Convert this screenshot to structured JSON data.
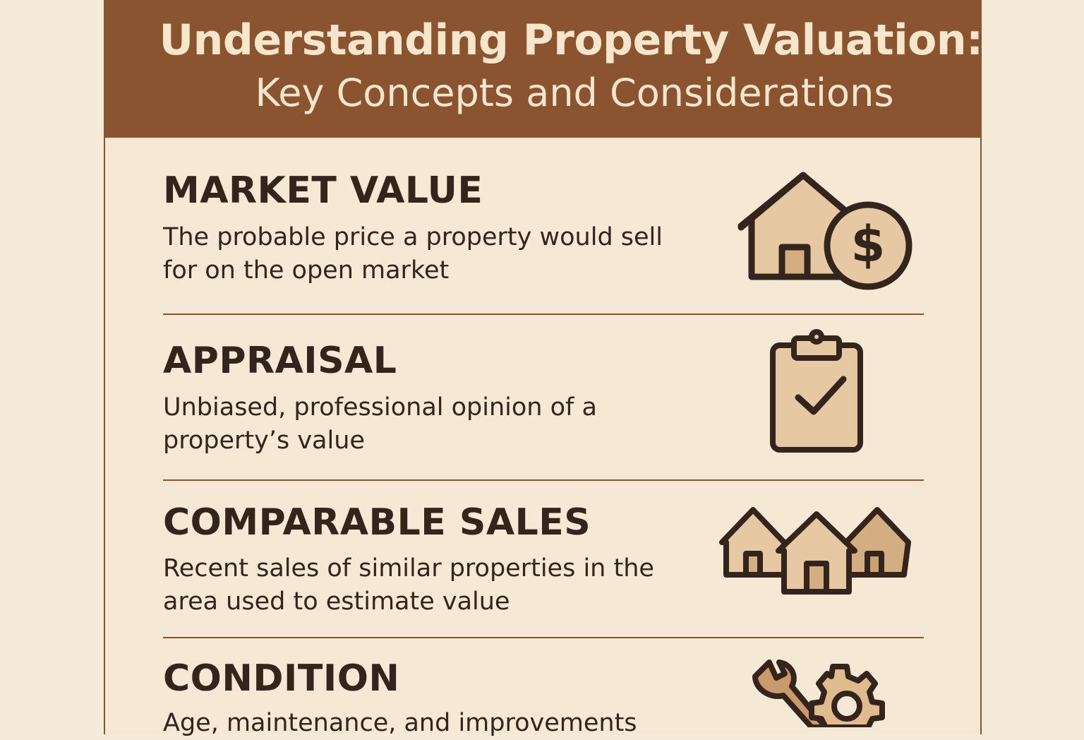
{
  "header": {
    "title_line1": "Understanding Property Valuation:",
    "title_line2": "Key Concepts and Considerations"
  },
  "sections": [
    {
      "title": "MARKET VALUE",
      "description": "The probable price a property would sell for on the open market",
      "icon": "house-dollar-icon"
    },
    {
      "title": "APPRAISAL",
      "description": "Unbiased, professional opinion of a property’s value",
      "icon": "clipboard-check-icon"
    },
    {
      "title": "COMPARABLE SALES",
      "description": "Recent sales of similar properties in the area used to estimate value",
      "icon": "three-houses-icon"
    },
    {
      "title": "CONDITION",
      "description": "Age, maintenance, and improvements",
      "icon": "wrench-gear-icon"
    }
  ],
  "colors": {
    "header": "#8b5430",
    "background": "#f5e8d5",
    "text": "#33251c",
    "icon_fill": "#e3c6a0"
  }
}
